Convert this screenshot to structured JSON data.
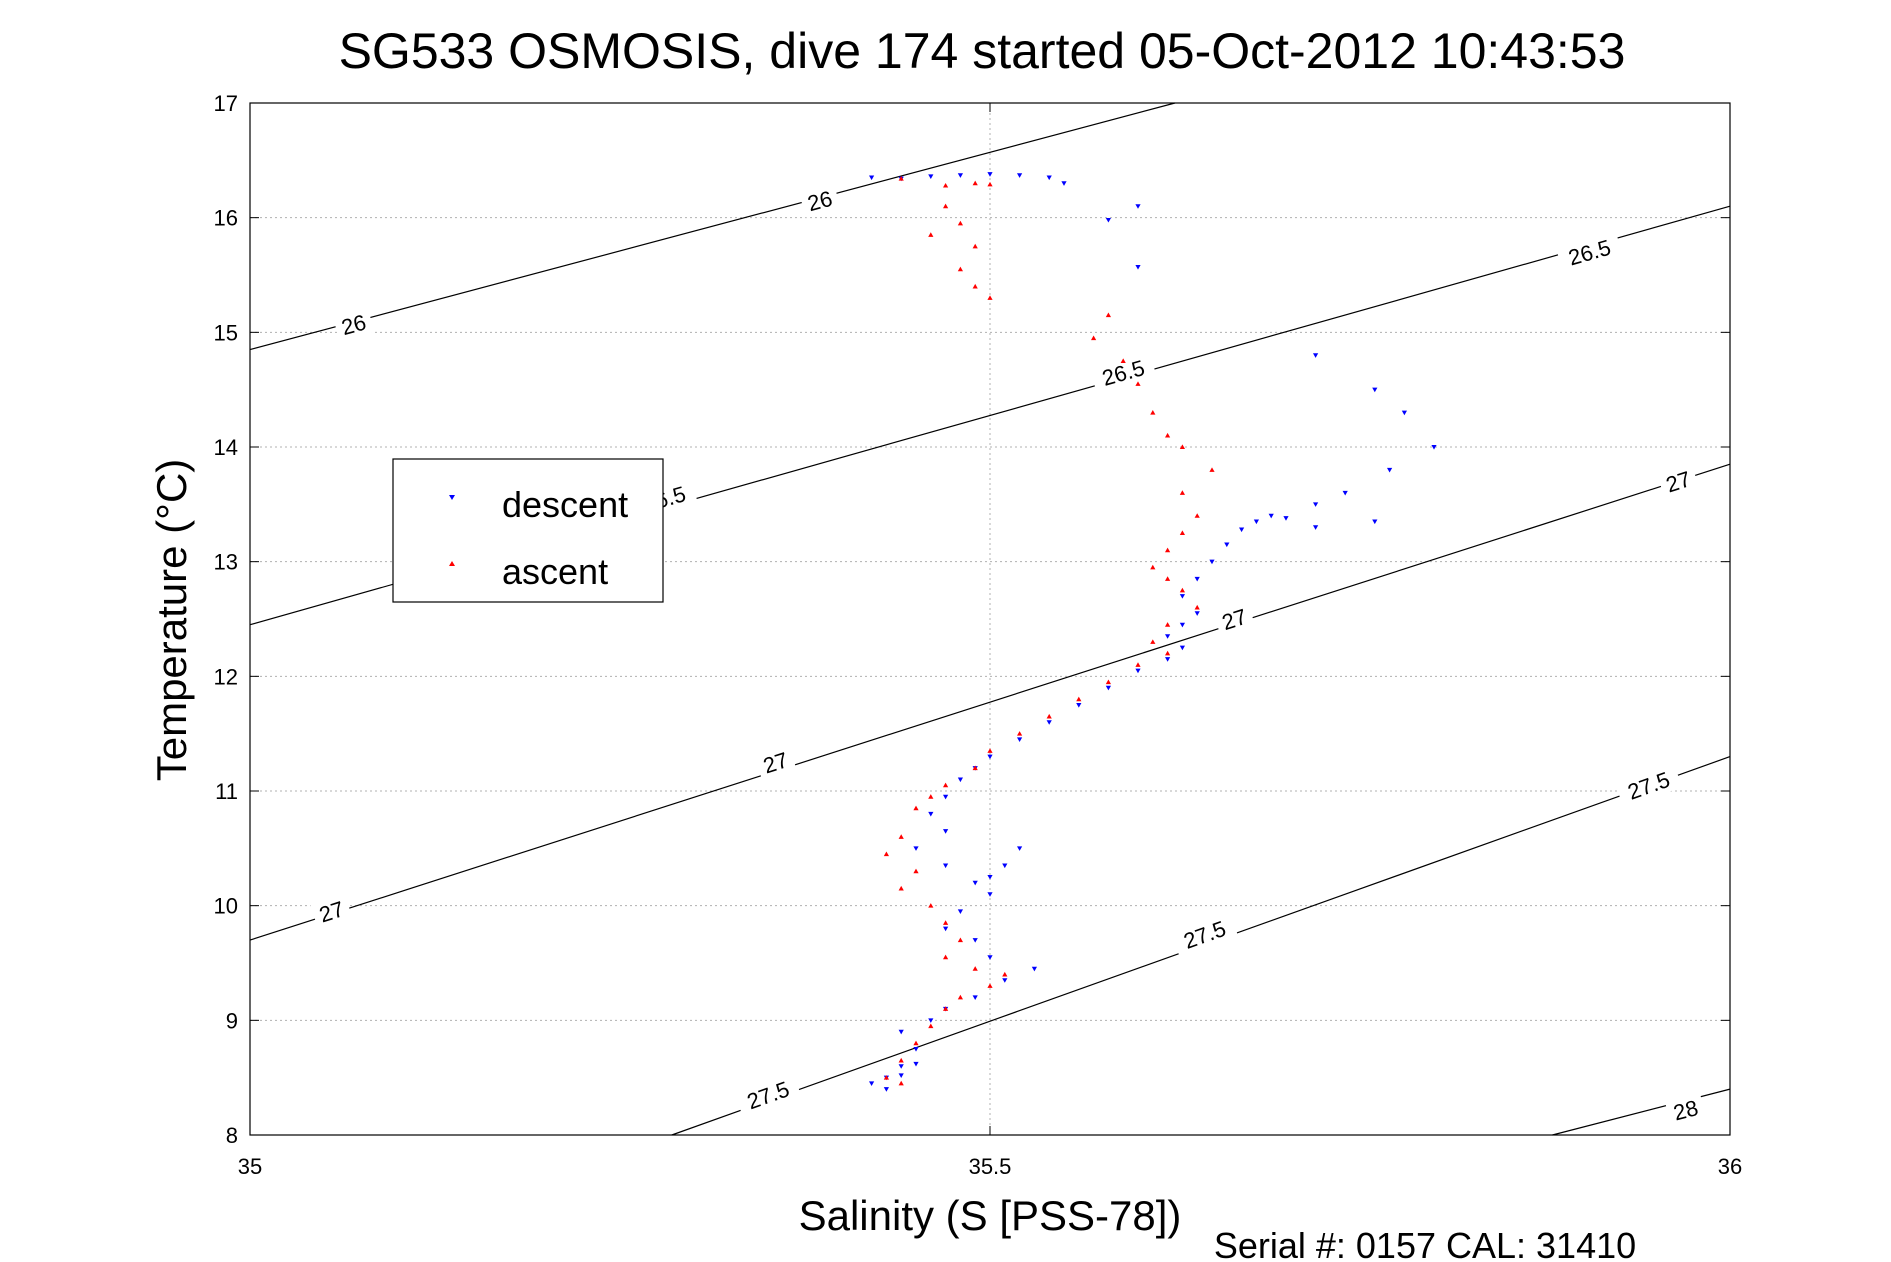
{
  "chart_data": {
    "type": "scatter",
    "title": "SG533 OSMOSIS, dive 174 started 05-Oct-2012 10:43:53",
    "xlabel": "Salinity (S [PSS-78])",
    "ylabel": "Temperature (°C)",
    "footer": "Serial #: 0157  CAL: 31410",
    "xlim": [
      35,
      36
    ],
    "ylim": [
      8,
      17
    ],
    "xticks": [
      35,
      35.5,
      36
    ],
    "xtick_labels": [
      "35",
      "35.5",
      "36"
    ],
    "yticks": [
      8,
      9,
      10,
      11,
      12,
      13,
      14,
      15,
      16,
      17
    ],
    "ytick_labels": [
      "8",
      "9",
      "10",
      "11",
      "12",
      "13",
      "14",
      "15",
      "16",
      "17"
    ],
    "grid": true,
    "legend": {
      "position": "upper-left",
      "entries": [
        "descent",
        "ascent"
      ]
    },
    "colors": {
      "descent": "#0000ff",
      "ascent": "#ff0000",
      "contour": "#000000",
      "grid": "#b0b0b0"
    },
    "density_contours": [
      {
        "level": "26",
        "points": [
          [
            35.0,
            14.85
          ],
          [
            35.625,
            17.0
          ]
        ],
        "labels": [
          {
            "text": "26",
            "at": [
              35.07,
              15.07
            ]
          },
          {
            "text": "26",
            "at": [
              35.385,
              16.15
            ]
          }
        ]
      },
      {
        "level": "26.5",
        "points": [
          [
            35.0,
            12.45
          ],
          [
            36.0,
            16.1
          ]
        ],
        "labels": [
          {
            "text": "26.5",
            "at": [
              35.28,
              13.55
            ]
          },
          {
            "text": "26.5",
            "at": [
              35.59,
              14.65
            ]
          },
          {
            "text": "26.5",
            "at": [
              35.905,
              15.7
            ]
          }
        ]
      },
      {
        "level": "27",
        "points": [
          [
            35.0,
            9.7
          ],
          [
            36.0,
            13.85
          ]
        ],
        "labels": [
          {
            "text": "27",
            "at": [
              35.055,
              9.95
            ]
          },
          {
            "text": "27",
            "at": [
              35.355,
              11.25
            ]
          },
          {
            "text": "27",
            "at": [
              35.665,
              12.5
            ]
          },
          {
            "text": "27",
            "at": [
              35.965,
              13.7
            ]
          }
        ]
      },
      {
        "level": "27.5",
        "points": [
          [
            35.285,
            8.0
          ],
          [
            36.0,
            11.3
          ]
        ],
        "labels": [
          {
            "text": "27.5",
            "at": [
              35.35,
              8.35
            ]
          },
          {
            "text": "27.5",
            "at": [
              35.645,
              9.75
            ]
          },
          {
            "text": "27.5",
            "at": [
              35.945,
              11.05
            ]
          }
        ]
      },
      {
        "level": "28",
        "points": [
          [
            35.88,
            8.0
          ],
          [
            36.0,
            8.4
          ]
        ],
        "labels": [
          {
            "text": "28",
            "at": [
              35.97,
              8.22
            ]
          }
        ]
      }
    ],
    "series": [
      {
        "name": "descent",
        "marker": "triangle-down",
        "color": "#0000ff",
        "points": [
          [
            35.42,
            16.35
          ],
          [
            35.44,
            16.34
          ],
          [
            35.46,
            16.36
          ],
          [
            35.48,
            16.37
          ],
          [
            35.5,
            16.38
          ],
          [
            35.52,
            16.37
          ],
          [
            35.54,
            16.35
          ],
          [
            35.55,
            16.3
          ],
          [
            35.6,
            16.1
          ],
          [
            35.58,
            15.98
          ],
          [
            35.6,
            15.57
          ],
          [
            35.72,
            14.8
          ],
          [
            35.76,
            14.5
          ],
          [
            35.78,
            14.3
          ],
          [
            35.8,
            14.0
          ],
          [
            35.77,
            13.8
          ],
          [
            35.74,
            13.6
          ],
          [
            35.72,
            13.5
          ],
          [
            35.7,
            13.38
          ],
          [
            35.72,
            13.3
          ],
          [
            35.76,
            13.35
          ],
          [
            35.69,
            13.4
          ],
          [
            35.68,
            13.35
          ],
          [
            35.67,
            13.28
          ],
          [
            35.66,
            13.15
          ],
          [
            35.65,
            13.0
          ],
          [
            35.64,
            12.85
          ],
          [
            35.63,
            12.7
          ],
          [
            35.64,
            12.55
          ],
          [
            35.63,
            12.45
          ],
          [
            35.62,
            12.35
          ],
          [
            35.63,
            12.25
          ],
          [
            35.62,
            12.15
          ],
          [
            35.6,
            12.05
          ],
          [
            35.58,
            11.9
          ],
          [
            35.56,
            11.75
          ],
          [
            35.54,
            11.6
          ],
          [
            35.52,
            11.45
          ],
          [
            35.5,
            11.3
          ],
          [
            35.49,
            11.2
          ],
          [
            35.48,
            11.1
          ],
          [
            35.47,
            10.95
          ],
          [
            35.46,
            10.8
          ],
          [
            35.47,
            10.65
          ],
          [
            35.45,
            10.5
          ],
          [
            35.47,
            10.35
          ],
          [
            35.49,
            10.2
          ],
          [
            35.5,
            10.1
          ],
          [
            35.51,
            10.35
          ],
          [
            35.52,
            10.5
          ],
          [
            35.5,
            10.25
          ],
          [
            35.48,
            9.95
          ],
          [
            35.47,
            9.8
          ],
          [
            35.49,
            9.7
          ],
          [
            35.5,
            9.55
          ],
          [
            35.53,
            9.45
          ],
          [
            35.51,
            9.35
          ],
          [
            35.49,
            9.2
          ],
          [
            35.47,
            9.1
          ],
          [
            35.46,
            9.0
          ],
          [
            35.44,
            8.9
          ],
          [
            35.45,
            8.75
          ],
          [
            35.44,
            8.6
          ],
          [
            35.43,
            8.5
          ],
          [
            35.42,
            8.45
          ],
          [
            35.43,
            8.4
          ],
          [
            35.44,
            8.52
          ],
          [
            35.45,
            8.62
          ]
        ]
      },
      {
        "name": "ascent",
        "marker": "triangle-up",
        "color": "#ff0000",
        "points": [
          [
            35.44,
            16.34
          ],
          [
            35.47,
            16.28
          ],
          [
            35.49,
            16.3
          ],
          [
            35.5,
            16.29
          ],
          [
            35.47,
            16.1
          ],
          [
            35.48,
            15.95
          ],
          [
            35.46,
            15.85
          ],
          [
            35.49,
            15.75
          ],
          [
            35.48,
            15.55
          ],
          [
            35.49,
            15.4
          ],
          [
            35.5,
            15.3
          ],
          [
            35.58,
            15.15
          ],
          [
            35.57,
            14.95
          ],
          [
            35.59,
            14.75
          ],
          [
            35.6,
            14.55
          ],
          [
            35.61,
            14.3
          ],
          [
            35.62,
            14.1
          ],
          [
            35.63,
            14.0
          ],
          [
            35.65,
            13.8
          ],
          [
            35.63,
            13.6
          ],
          [
            35.64,
            13.4
          ],
          [
            35.63,
            13.25
          ],
          [
            35.62,
            13.1
          ],
          [
            35.61,
            12.95
          ],
          [
            35.62,
            12.85
          ],
          [
            35.63,
            12.75
          ],
          [
            35.64,
            12.6
          ],
          [
            35.62,
            12.45
          ],
          [
            35.61,
            12.3
          ],
          [
            35.62,
            12.2
          ],
          [
            35.6,
            12.1
          ],
          [
            35.58,
            11.95
          ],
          [
            35.56,
            11.8
          ],
          [
            35.54,
            11.65
          ],
          [
            35.52,
            11.5
          ],
          [
            35.5,
            11.35
          ],
          [
            35.49,
            11.2
          ],
          [
            35.47,
            11.05
          ],
          [
            35.46,
            10.95
          ],
          [
            35.45,
            10.85
          ],
          [
            35.44,
            10.6
          ],
          [
            35.43,
            10.45
          ],
          [
            35.45,
            10.3
          ],
          [
            35.44,
            10.15
          ],
          [
            35.46,
            10.0
          ],
          [
            35.47,
            9.85
          ],
          [
            35.48,
            9.7
          ],
          [
            35.47,
            9.55
          ],
          [
            35.49,
            9.45
          ],
          [
            35.51,
            9.4
          ],
          [
            35.5,
            9.3
          ],
          [
            35.48,
            9.2
          ],
          [
            35.47,
            9.1
          ],
          [
            35.46,
            8.95
          ],
          [
            35.45,
            8.8
          ],
          [
            35.44,
            8.65
          ],
          [
            35.43,
            8.5
          ],
          [
            35.44,
            8.45
          ]
        ]
      }
    ]
  }
}
